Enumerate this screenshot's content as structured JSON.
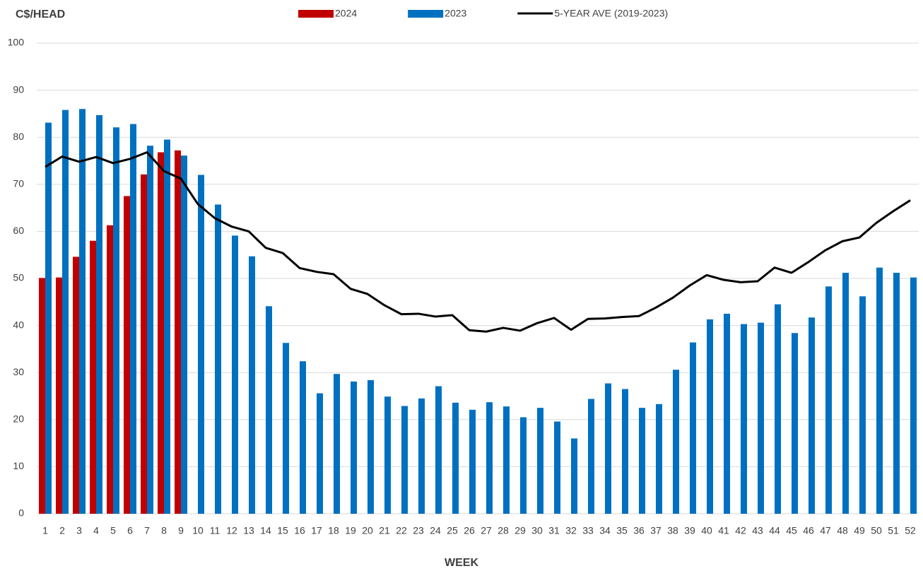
{
  "chart_data": {
    "type": "bar_line",
    "y_label": "C$/HEAD",
    "x_label": "WEEK",
    "categories": [
      "1",
      "2",
      "3",
      "4",
      "5",
      "6",
      "7",
      "8",
      "9",
      "10",
      "11",
      "12",
      "13",
      "14",
      "15",
      "16",
      "17",
      "18",
      "19",
      "20",
      "21",
      "22",
      "23",
      "24",
      "25",
      "26",
      "27",
      "28",
      "29",
      "30",
      "31",
      "32",
      "33",
      "34",
      "35",
      "36",
      "37",
      "38",
      "39",
      "40",
      "41",
      "42",
      "43",
      "44",
      "45",
      "46",
      "47",
      "48",
      "49",
      "50",
      "51",
      "52"
    ],
    "series": [
      {
        "name": "2024",
        "color": "#c00000",
        "kind": "bar",
        "values": [
          50.1,
          50.2,
          54.6,
          58,
          61.3,
          67.5,
          72.1,
          76.8,
          77.2,
          null,
          null,
          null,
          null,
          null,
          null,
          null,
          null,
          null,
          null,
          null,
          null,
          null,
          null,
          null,
          null,
          null,
          null,
          null,
          null,
          null,
          null,
          null,
          null,
          null,
          null,
          null,
          null,
          null,
          null,
          null,
          null,
          null,
          null,
          null,
          null,
          null,
          null,
          null,
          null,
          null,
          null,
          null
        ]
      },
      {
        "name": "2023",
        "color": "#0070c0",
        "kind": "bar",
        "values": [
          83.1,
          85.8,
          86,
          84.7,
          82.1,
          82.8,
          78.2,
          79.5,
          76.1,
          72,
          65.7,
          59.1,
          54.7,
          44.1,
          36.3,
          32.4,
          25.6,
          29.7,
          28.1,
          28.4,
          24.9,
          22.9,
          24.5,
          27.1,
          23.6,
          22.1,
          23.7,
          22.8,
          20.5,
          22.5,
          19.6,
          16,
          24.4,
          27.7,
          26.5,
          22.5,
          23.3,
          30.6,
          36.4,
          41.3,
          42.5,
          40.3,
          40.6,
          44.5,
          38.4,
          41.7,
          48.3,
          51.2,
          46.2,
          52.3,
          51.2,
          50.2
        ]
      },
      {
        "name": "5-YEAR AVE (2019-2023)",
        "color": "#000000",
        "kind": "line",
        "values": [
          73.7,
          75.9,
          74.8,
          75.8,
          74.5,
          75.4,
          76.8,
          72.8,
          71.2,
          65.8,
          62.8,
          61,
          60,
          56.5,
          55.4,
          52.2,
          51.4,
          50.9,
          47.8,
          46.7,
          44.3,
          42.4,
          42.5,
          41.9,
          42.2,
          39,
          38.7,
          39.5,
          38.9,
          40.5,
          41.6,
          39.1,
          41.4,
          41.5,
          41.8,
          42,
          43.8,
          45.9,
          48.5,
          50.7,
          49.7,
          49.2,
          49.4,
          52.3,
          51.2,
          53.5,
          56,
          57.9,
          58.7,
          61.8,
          64.3,
          66.6
        ]
      }
    ],
    "ylim": [
      0,
      100
    ],
    "yticks": [
      0,
      10,
      20,
      30,
      40,
      50,
      60,
      70,
      80,
      90,
      100
    ],
    "grid": true,
    "legend": "top"
  }
}
